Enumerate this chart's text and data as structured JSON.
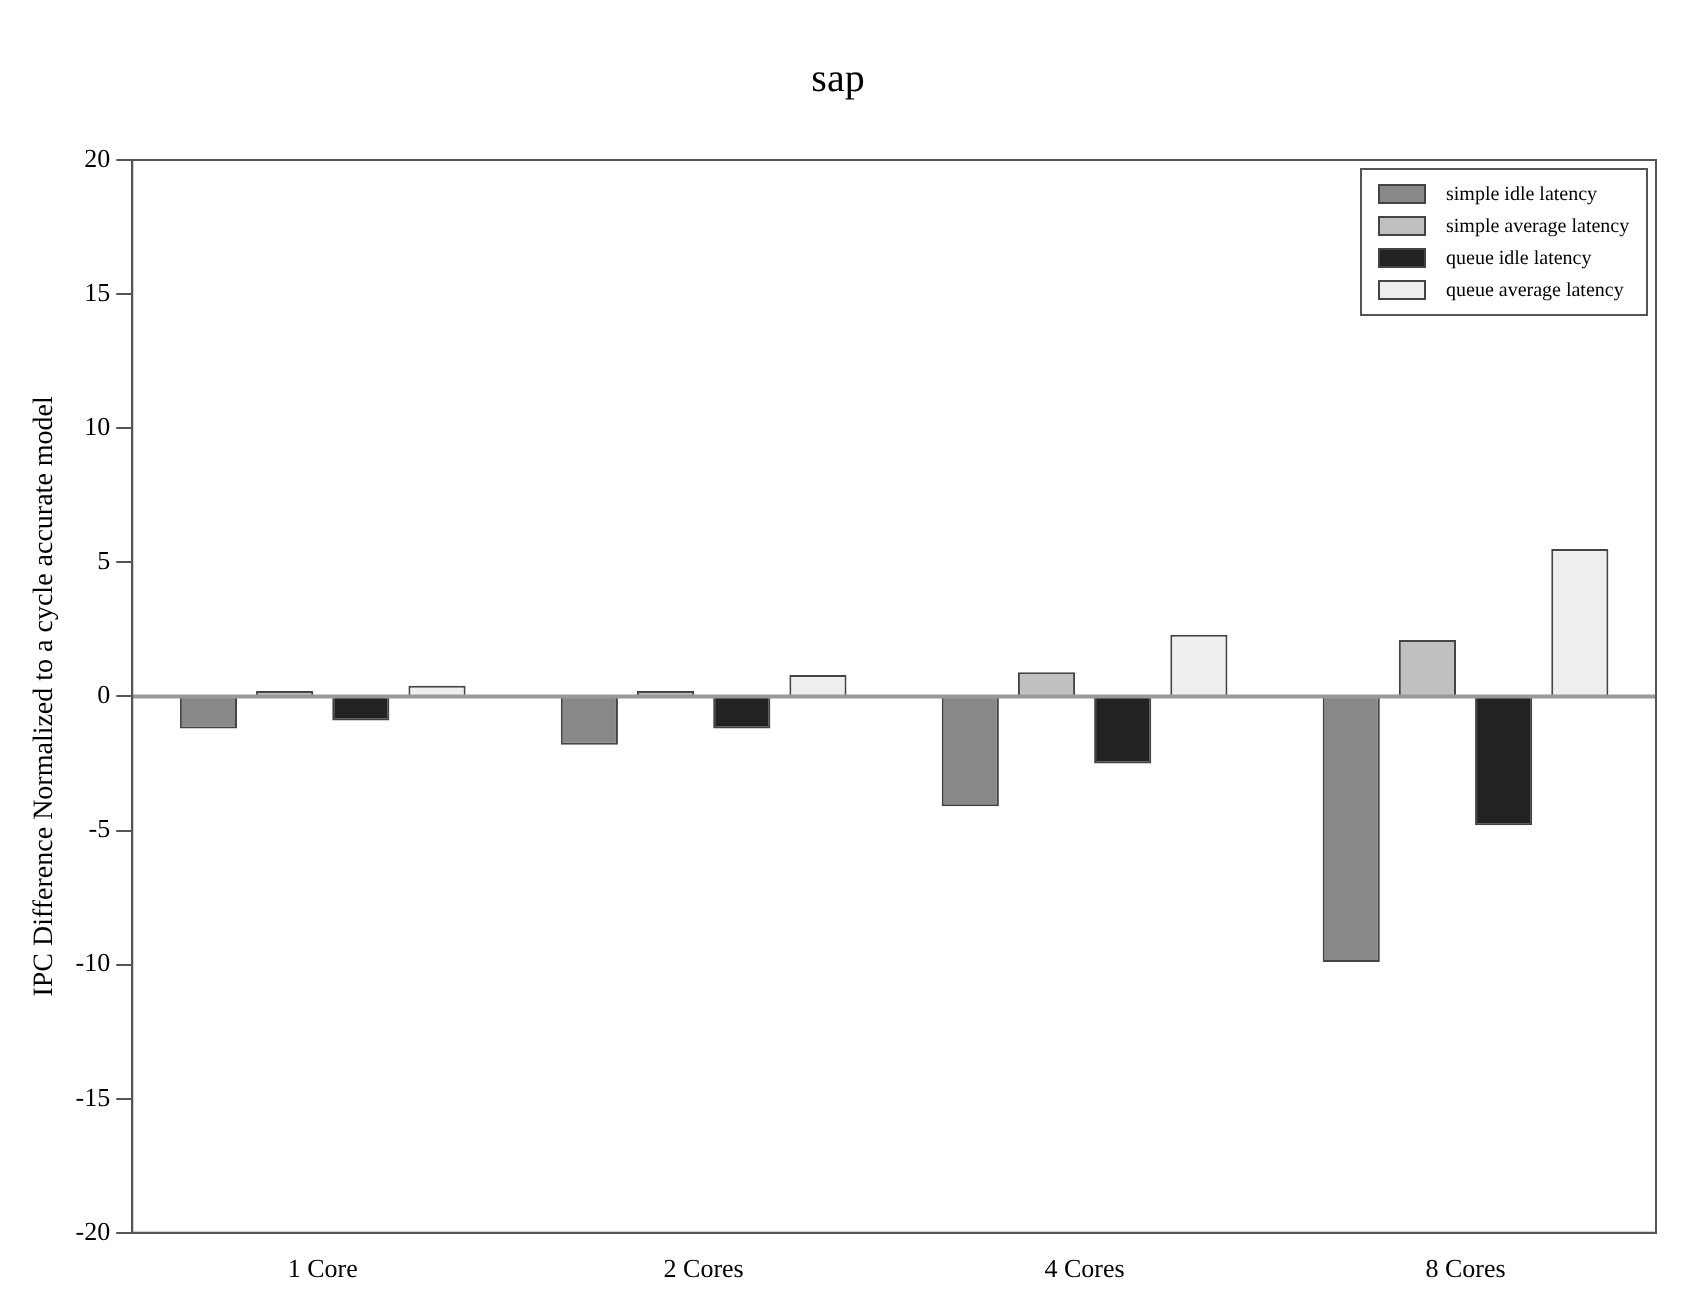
{
  "chart_data": {
    "type": "bar",
    "title": "sap",
    "ylabel": "IPC Difference Normalized to a cycle accurate model",
    "categories": [
      "1 Core",
      "2 Cores",
      "4 Cores",
      "8 Cores"
    ],
    "series": [
      {
        "name": "simple idle latency",
        "color": "#888888",
        "values": [
          -1.2,
          -1.8,
          -4.1,
          -9.9
        ]
      },
      {
        "name": "simple average latency",
        "color": "#c0c0c0",
        "values": [
          0.2,
          0.2,
          0.9,
          2.1
        ]
      },
      {
        "name": "queue idle latency",
        "color": "#222222",
        "values": [
          -0.9,
          -1.2,
          -2.5,
          -4.8
        ]
      },
      {
        "name": "queue average latency",
        "color": "#eeeeee",
        "values": [
          0.4,
          0.8,
          2.3,
          5.5
        ]
      }
    ],
    "ylim": [
      -20,
      20
    ],
    "yticks": [
      -20,
      -15,
      -10,
      -5,
      0,
      5,
      10,
      15,
      20
    ],
    "grid": false,
    "legend": "top right",
    "ref_lines": [
      {
        "axis": "y",
        "value": 0,
        "color": "#999999"
      }
    ]
  }
}
